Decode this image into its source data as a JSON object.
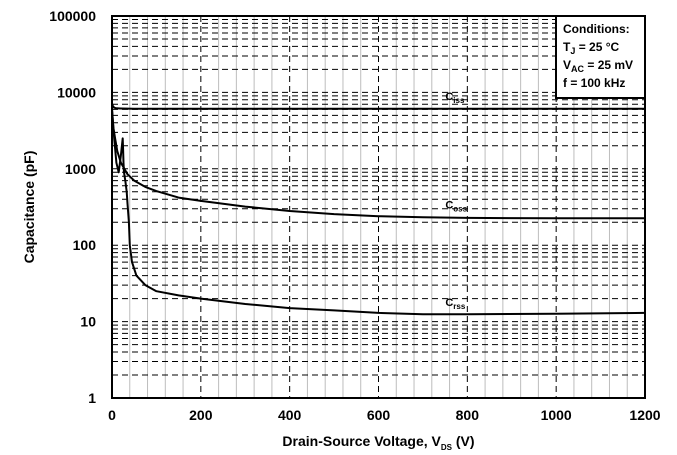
{
  "chart_data": {
    "type": "line",
    "title": "",
    "xlabel": {
      "main": "Drain-Source Voltage, V",
      "sub": "DS",
      "unit": " (V)"
    },
    "ylabel": "Capacitance (pF)",
    "xlim": [
      0,
      1200
    ],
    "ylim": [
      1,
      100000
    ],
    "yscale": "log",
    "grid": true,
    "x_ticks": [
      0,
      200,
      400,
      600,
      800,
      1000,
      1200
    ],
    "x_tick_labels": [
      "0",
      "200",
      "400",
      "600",
      "800",
      "1000",
      "1200"
    ],
    "y_ticks": [
      1,
      10,
      100,
      1000,
      10000,
      100000
    ],
    "y_tick_labels": [
      "1",
      "10",
      "100",
      "1000",
      "10000",
      "100000"
    ],
    "series": [
      {
        "name": "Ciss",
        "label_main": "C",
        "label_sub": "iss",
        "label_at": [
          800,
          8000
        ],
        "x": [
          0,
          2,
          5,
          10,
          20,
          50,
          100,
          200,
          400,
          600,
          800,
          1000,
          1200
        ],
        "y": [
          7200,
          6600,
          6300,
          6200,
          6150,
          6100,
          6100,
          6100,
          6100,
          6100,
          6100,
          6100,
          6100
        ]
      },
      {
        "name": "Coss",
        "label_main": "C",
        "label_sub": "oss",
        "label_at": [
          800,
          300
        ],
        "x": [
          0,
          3,
          7,
          12,
          20,
          35,
          50,
          75,
          100,
          150,
          200,
          300,
          400,
          500,
          600,
          700,
          800,
          1000,
          1200
        ],
        "y": [
          6000,
          3500,
          2500,
          1700,
          1200,
          850,
          700,
          580,
          510,
          420,
          380,
          320,
          280,
          255,
          240,
          232,
          228,
          225,
          225
        ]
      },
      {
        "name": "Crss",
        "label_main": "C",
        "label_sub": "rss",
        "label_at": [
          800,
          16
        ],
        "x": [
          0,
          5,
          10,
          15,
          20,
          24,
          25,
          26,
          27,
          30,
          33,
          35,
          38,
          40,
          45,
          55,
          75,
          100,
          150,
          200,
          300,
          400,
          500,
          600,
          700,
          800,
          1000,
          1200
        ],
        "y": [
          6000,
          2500,
          1200,
          900,
          1500,
          2500,
          1800,
          1200,
          900,
          700,
          500,
          350,
          200,
          100,
          60,
          40,
          30,
          25,
          22,
          20,
          17,
          15,
          14,
          13,
          12.5,
          12.5,
          12.7,
          13
        ]
      }
    ],
    "conditions": {
      "title": "Conditions:",
      "lines": [
        {
          "main": "T",
          "sub": "J",
          "rest": " = 25 °C"
        },
        {
          "main": "V",
          "sub": "AC",
          "rest": " = 25 mV"
        },
        {
          "main": "f = 100 kHz",
          "sub": "",
          "rest": ""
        }
      ]
    }
  }
}
